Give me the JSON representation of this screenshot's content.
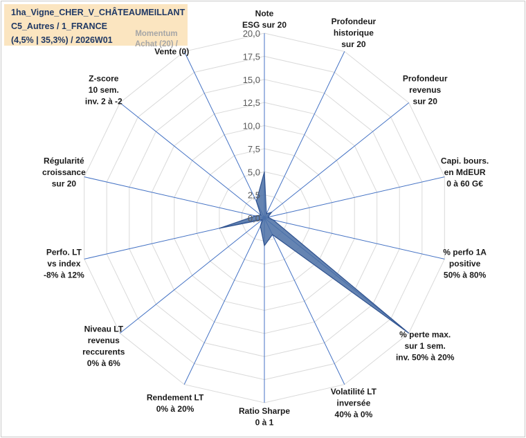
{
  "title": {
    "line1": "1ha_Vigne_CHER_V_CHÂTEAUMEILLANT",
    "line2": "C5_Autres / 1_FRANCE",
    "line3": "(4,5% | 35,3%) / 2026W01"
  },
  "momentum": {
    "line1": "Momentum",
    "line2": "Achat (20) /",
    "line3": "Vente (0)"
  },
  "colors": {
    "grid": "#d9d9d9",
    "spoke": "#4472c4",
    "fill": "#4a6fa5",
    "stroke": "#2f528f",
    "titlebg": "#fbe5c0"
  },
  "chart_data": {
    "type": "radar",
    "rlim": [
      0,
      20
    ],
    "grid": true,
    "ticks": [
      "0,0",
      "2,5",
      "5,0",
      "7,5",
      "10,0",
      "12,5",
      "15,0",
      "17,5",
      "20,0"
    ],
    "axes": [
      {
        "lines": [
          "Note",
          "ESG sur 20"
        ]
      },
      {
        "lines": [
          "Profondeur",
          "historique",
          "sur 20"
        ]
      },
      {
        "lines": [
          "Profondeur",
          "revenus",
          "sur 20"
        ]
      },
      {
        "lines": [
          "Capi. bours.",
          "en MdEUR",
          "0 à 60 G€"
        ]
      },
      {
        "lines": [
          "% perfo 1A",
          "positive",
          "50% à 80%"
        ]
      },
      {
        "lines": [
          "% perte max.",
          "sur 1 sem.",
          "inv. 50% à 20%"
        ]
      },
      {
        "lines": [
          "Volatilité LT",
          "inversée",
          "40% à 0%"
        ]
      },
      {
        "lines": [
          "Ratio Sharpe",
          "0 à 1"
        ]
      },
      {
        "lines": [
          "Rendement LT",
          "0% à 20%"
        ]
      },
      {
        "lines": [
          "Niveau LT",
          "revenus",
          "reccurents",
          "0% à 6%"
        ]
      },
      {
        "lines": [
          "Perfo. LT",
          "vs index",
          "-8% à 12%"
        ]
      },
      {
        "lines": [
          "Régularité",
          "croissance",
          "sur 20"
        ]
      },
      {
        "lines": [
          "Z-score",
          "10 sem.",
          "inv. 2 à -2"
        ]
      },
      {
        "lines": [
          "Momentum",
          "Achat (20) /",
          "Vente (0)"
        ]
      }
    ],
    "values": [
      5.0,
      0.5,
      1.0,
      0.4,
      1.0,
      20.0,
      2.0,
      3.0,
      1.0,
      0.3,
      5.0,
      1.0,
      0.5,
      2.0
    ]
  }
}
